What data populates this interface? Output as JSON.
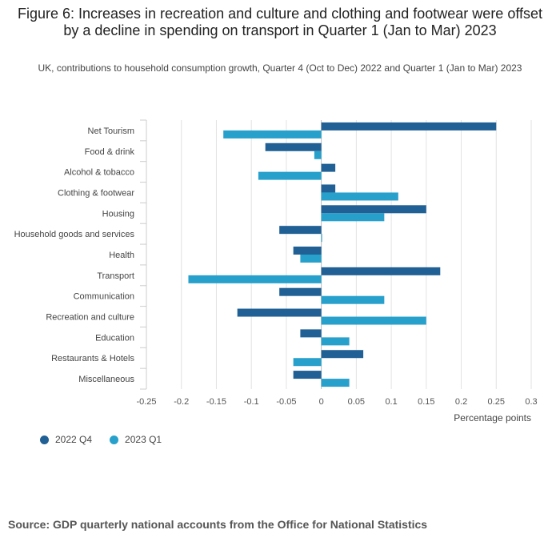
{
  "chart_data": {
    "type": "bar",
    "orientation": "horizontal",
    "title": "Figure 6: Increases in recreation and culture and clothing and footwear were offset by a decline in spending on transport in Quarter 1 (Jan to Mar) 2023",
    "subtitle": "UK, contributions to household consumption growth, Quarter 4 (Oct to Dec) 2022 and Quarter 1 (Jan to Mar) 2023",
    "xlabel": "Percentage points",
    "xlim": [
      -0.25,
      0.3
    ],
    "ticks": [
      -0.25,
      -0.2,
      -0.15,
      -0.1,
      -0.05,
      0,
      0.05,
      0.1,
      0.15,
      0.2,
      0.25,
      0.3
    ],
    "tick_labels": [
      "-0.25",
      "-0.2",
      "-0.15",
      "-0.1",
      "-0.05",
      "0",
      "0.05",
      "0.1",
      "0.15",
      "0.2",
      "0.25",
      "0.3"
    ],
    "categories": [
      "Net Tourism",
      "Food & drink",
      "Alcohol & tobacco",
      "Clothing & footwear",
      "Housing",
      "Household goods and services",
      "Health",
      "Transport",
      "Communication",
      "Recreation and culture",
      "Education",
      "Restaurants & Hotels",
      "Miscellaneous"
    ],
    "series": [
      {
        "name": "2022 Q4",
        "color": "#206095",
        "values": [
          0.25,
          -0.08,
          0.02,
          0.02,
          0.15,
          -0.06,
          -0.04,
          0.17,
          -0.06,
          -0.12,
          -0.03,
          0.06,
          -0.04
        ]
      },
      {
        "name": "2023 Q1",
        "color": "#27a0cc",
        "values": [
          -0.14,
          -0.01,
          -0.09,
          0.11,
          0.09,
          0.0,
          -0.03,
          -0.19,
          0.09,
          0.15,
          0.04,
          -0.04,
          0.04
        ]
      }
    ],
    "grid": true,
    "legend_position": "bottom-left"
  },
  "source": "Source: GDP quarterly national accounts from the Office for National Statistics"
}
